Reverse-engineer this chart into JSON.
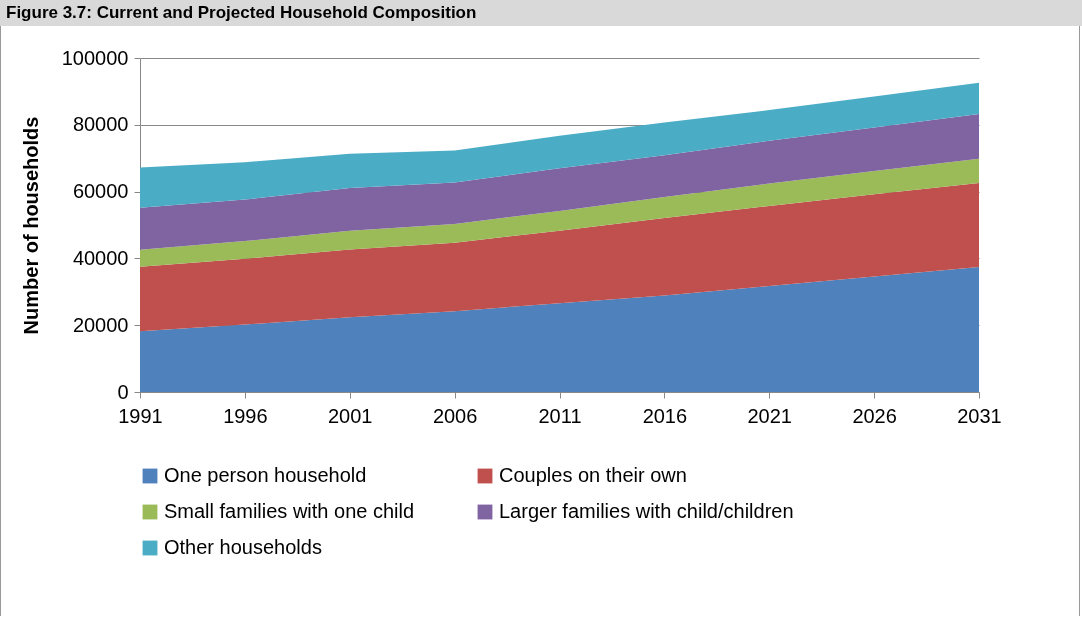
{
  "chart_data": {
    "type": "area",
    "title": "Figure 3.7: Current and Projected Household Composition",
    "ylabel": "Number of households",
    "x": [
      1991,
      1996,
      2001,
      2006,
      2011,
      2016,
      2021,
      2026,
      2031
    ],
    "xlim": [
      1991,
      2031
    ],
    "xticks": [
      1991,
      1996,
      2001,
      2006,
      2011,
      2016,
      2021,
      2026,
      2031
    ],
    "ylim": [
      0,
      100000
    ],
    "yticks": [
      0,
      20000,
      40000,
      60000,
      80000,
      100000
    ],
    "stacked": true,
    "grid": "y",
    "legend": "bottom",
    "series": [
      {
        "name": "One person household",
        "color": "#4f81bd",
        "values": [
          18200,
          20200,
          22400,
          24200,
          26600,
          28900,
          31700,
          34600,
          37400
        ]
      },
      {
        "name": "Couples on their own",
        "color": "#c0504d",
        "values": [
          19300,
          19700,
          20300,
          20500,
          21700,
          23200,
          24000,
          24600,
          25200
        ]
      },
      {
        "name": "Small families with one child",
        "color": "#9bbb59",
        "values": [
          5100,
          5300,
          5600,
          5600,
          5900,
          6300,
          6700,
          7000,
          7200
        ]
      },
      {
        "name": "Larger families with child/children",
        "color": "#8064a2",
        "values": [
          12600,
          12400,
          12800,
          12400,
          12800,
          12500,
          12800,
          13000,
          13400
        ]
      },
      {
        "name": "Other households",
        "color": "#4bacc6",
        "values": [
          12000,
          11200,
          10200,
          9600,
          9700,
          9800,
          9200,
          9300,
          9400
        ]
      }
    ]
  }
}
